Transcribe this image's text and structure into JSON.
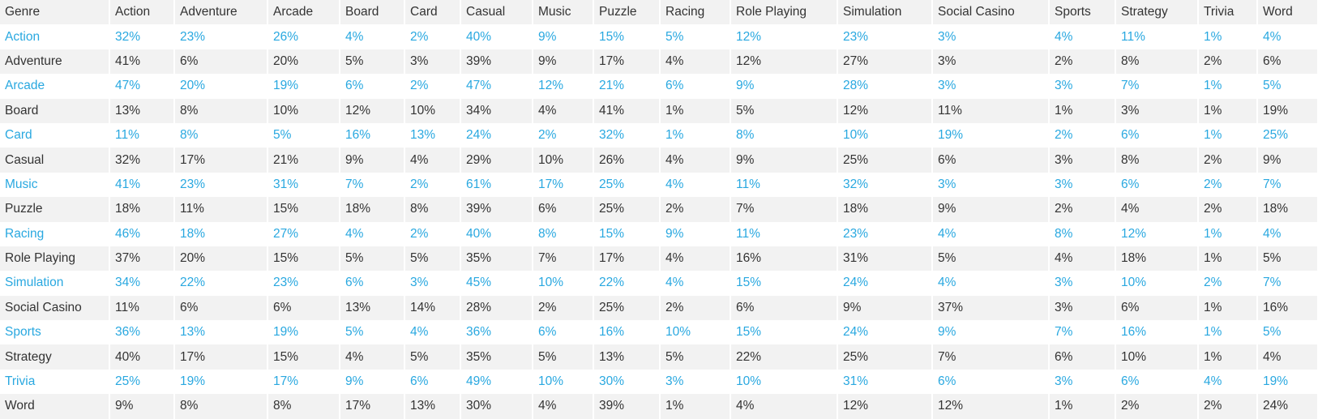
{
  "table": {
    "header": [
      "Genre",
      "Action",
      "Adventure",
      "Arcade",
      "Board",
      "Card",
      "Casual",
      "Music",
      "Puzzle",
      "Racing",
      "Role Playing",
      "Simulation",
      "Social Casino",
      "Sports",
      "Strategy",
      "Trivia",
      "Word"
    ],
    "rows": [
      [
        "Action",
        "32%",
        "23%",
        "26%",
        "4%",
        "2%",
        "40%",
        "9%",
        "15%",
        "5%",
        "12%",
        "23%",
        "3%",
        "4%",
        "11%",
        "1%",
        "4%"
      ],
      [
        "Adventure",
        "41%",
        "6%",
        "20%",
        "5%",
        "3%",
        "39%",
        "9%",
        "17%",
        "4%",
        "12%",
        "27%",
        "3%",
        "2%",
        "8%",
        "2%",
        "6%"
      ],
      [
        "Arcade",
        "47%",
        "20%",
        "19%",
        "6%",
        "2%",
        "47%",
        "12%",
        "21%",
        "6%",
        "9%",
        "28%",
        "3%",
        "3%",
        "7%",
        "1%",
        "5%"
      ],
      [
        "Board",
        "13%",
        "8%",
        "10%",
        "12%",
        "10%",
        "34%",
        "4%",
        "41%",
        "1%",
        "5%",
        "12%",
        "11%",
        "1%",
        "3%",
        "1%",
        "19%"
      ],
      [
        "Card",
        "11%",
        "8%",
        "5%",
        "16%",
        "13%",
        "24%",
        "2%",
        "32%",
        "1%",
        "8%",
        "10%",
        "19%",
        "2%",
        "6%",
        "1%",
        "25%"
      ],
      [
        "Casual",
        "32%",
        "17%",
        "21%",
        "9%",
        "4%",
        "29%",
        "10%",
        "26%",
        "4%",
        "9%",
        "25%",
        "6%",
        "3%",
        "8%",
        "2%",
        "9%"
      ],
      [
        "Music",
        "41%",
        "23%",
        "31%",
        "7%",
        "2%",
        "61%",
        "17%",
        "25%",
        "4%",
        "11%",
        "32%",
        "3%",
        "3%",
        "6%",
        "2%",
        "7%"
      ],
      [
        "Puzzle",
        "18%",
        "11%",
        "15%",
        "18%",
        "8%",
        "39%",
        "6%",
        "25%",
        "2%",
        "7%",
        "18%",
        "9%",
        "2%",
        "4%",
        "2%",
        "18%"
      ],
      [
        "Racing",
        "46%",
        "18%",
        "27%",
        "4%",
        "2%",
        "40%",
        "8%",
        "15%",
        "9%",
        "11%",
        "23%",
        "4%",
        "8%",
        "12%",
        "1%",
        "4%"
      ],
      [
        "Role Playing",
        "37%",
        "20%",
        "15%",
        "5%",
        "5%",
        "35%",
        "7%",
        "17%",
        "4%",
        "16%",
        "31%",
        "5%",
        "4%",
        "18%",
        "1%",
        "5%"
      ],
      [
        "Simulation",
        "34%",
        "22%",
        "23%",
        "6%",
        "3%",
        "45%",
        "10%",
        "22%",
        "4%",
        "15%",
        "24%",
        "4%",
        "3%",
        "10%",
        "2%",
        "7%"
      ],
      [
        "Social Casino",
        "11%",
        "6%",
        "6%",
        "13%",
        "14%",
        "28%",
        "2%",
        "25%",
        "2%",
        "6%",
        "9%",
        "37%",
        "3%",
        "6%",
        "1%",
        "16%"
      ],
      [
        "Sports",
        "36%",
        "13%",
        "19%",
        "5%",
        "4%",
        "36%",
        "6%",
        "16%",
        "10%",
        "15%",
        "24%",
        "9%",
        "7%",
        "16%",
        "1%",
        "5%"
      ],
      [
        "Strategy",
        "40%",
        "17%",
        "15%",
        "4%",
        "5%",
        "35%",
        "5%",
        "13%",
        "5%",
        "22%",
        "25%",
        "7%",
        "6%",
        "10%",
        "1%",
        "4%"
      ],
      [
        "Trivia",
        "25%",
        "19%",
        "17%",
        "9%",
        "6%",
        "49%",
        "10%",
        "30%",
        "3%",
        "10%",
        "31%",
        "6%",
        "3%",
        "6%",
        "4%",
        "19%"
      ],
      [
        "Word",
        "9%",
        "8%",
        "8%",
        "17%",
        "13%",
        "30%",
        "4%",
        "39%",
        "1%",
        "4%",
        "12%",
        "12%",
        "1%",
        "2%",
        "2%",
        "24%"
      ]
    ]
  }
}
